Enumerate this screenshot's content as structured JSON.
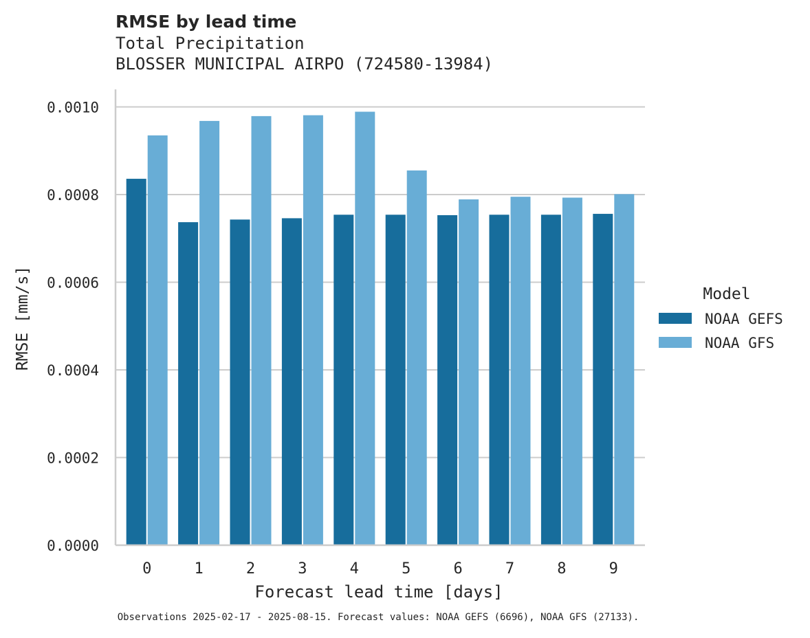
{
  "chart_data": {
    "type": "bar",
    "title": "RMSE by lead time",
    "subtitle_lines": [
      "Total Precipitation",
      "BLOSSER MUNICIPAL AIRPO (724580-13984)"
    ],
    "xlabel": "Forecast lead time [days]",
    "ylabel": "RMSE [mm/s]",
    "categories": [
      "0",
      "1",
      "2",
      "3",
      "4",
      "5",
      "6",
      "7",
      "8",
      "9"
    ],
    "ylim": [
      0,
      0.00104
    ],
    "yticks": [
      0.0,
      0.0002,
      0.0004,
      0.0006,
      0.0008,
      0.001
    ],
    "ytick_labels": [
      "0.0000",
      "0.0002",
      "0.0004",
      "0.0006",
      "0.0008",
      "0.0010"
    ],
    "grid": "horizontal",
    "legend": {
      "title": "Model",
      "placement": "right"
    },
    "series": [
      {
        "name": "NOAA GEFS",
        "color": "#176d9c",
        "values": [
          0.000836,
          0.000737,
          0.000743,
          0.000746,
          0.000754,
          0.000754,
          0.000753,
          0.000754,
          0.000754,
          0.000756
        ]
      },
      {
        "name": "NOAA GFS",
        "color": "#68add6",
        "values": [
          0.000935,
          0.000968,
          0.000979,
          0.000981,
          0.000989,
          0.000855,
          0.000789,
          0.000795,
          0.000793,
          0.000801
        ]
      }
    ],
    "footnote": "Observations 2025-02-17 - 2025-08-15. Forecast values: NOAA GEFS (6696), NOAA GFS (27133)."
  }
}
